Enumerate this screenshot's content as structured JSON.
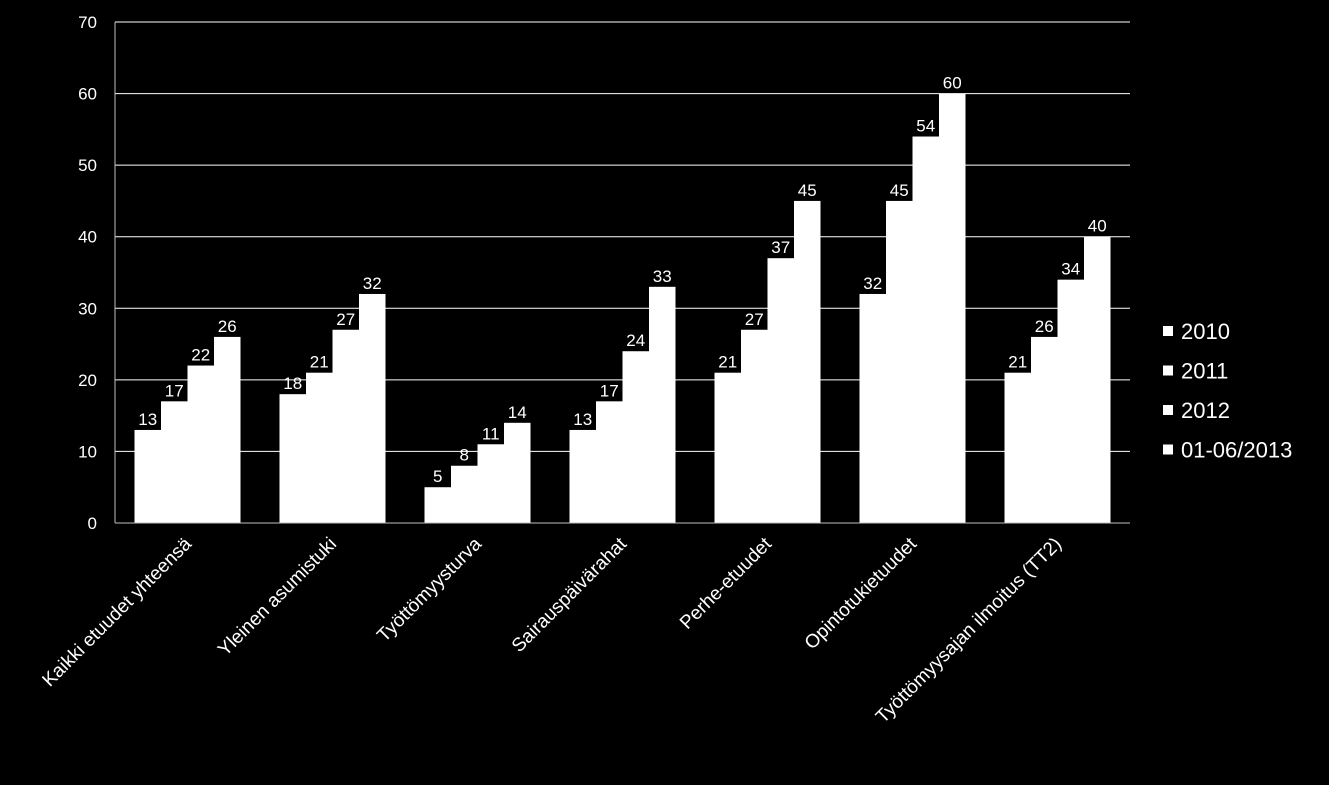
{
  "chart_data": {
    "type": "bar",
    "categories": [
      "Kaikki etuudet yhteensä",
      "Yleinen asumistuki",
      "Työttömyysturva",
      "Sairauspäivärahat",
      "Perhe-etuudet",
      "Opintotukietuudet",
      "Työttömyysajan ilmoitus (TT2)"
    ],
    "series": [
      {
        "name": "2010",
        "values": [
          13,
          18,
          5,
          13,
          21,
          32,
          21
        ]
      },
      {
        "name": "2011",
        "values": [
          17,
          21,
          8,
          17,
          27,
          45,
          26
        ]
      },
      {
        "name": "2012",
        "values": [
          22,
          27,
          11,
          24,
          37,
          54,
          34
        ]
      },
      {
        "name": "01-06/2013",
        "values": [
          26,
          32,
          14,
          33,
          45,
          60,
          40
        ]
      }
    ],
    "yticks": [
      "0",
      "10",
      "20",
      "30",
      "40",
      "50",
      "60",
      "70"
    ],
    "ylim": [
      0,
      70
    ],
    "grid": true,
    "legend_position": "right",
    "colors": {
      "background": "#000000",
      "bars": "#ffffff",
      "text": "#ffffff",
      "grid": "#ffffff"
    }
  }
}
